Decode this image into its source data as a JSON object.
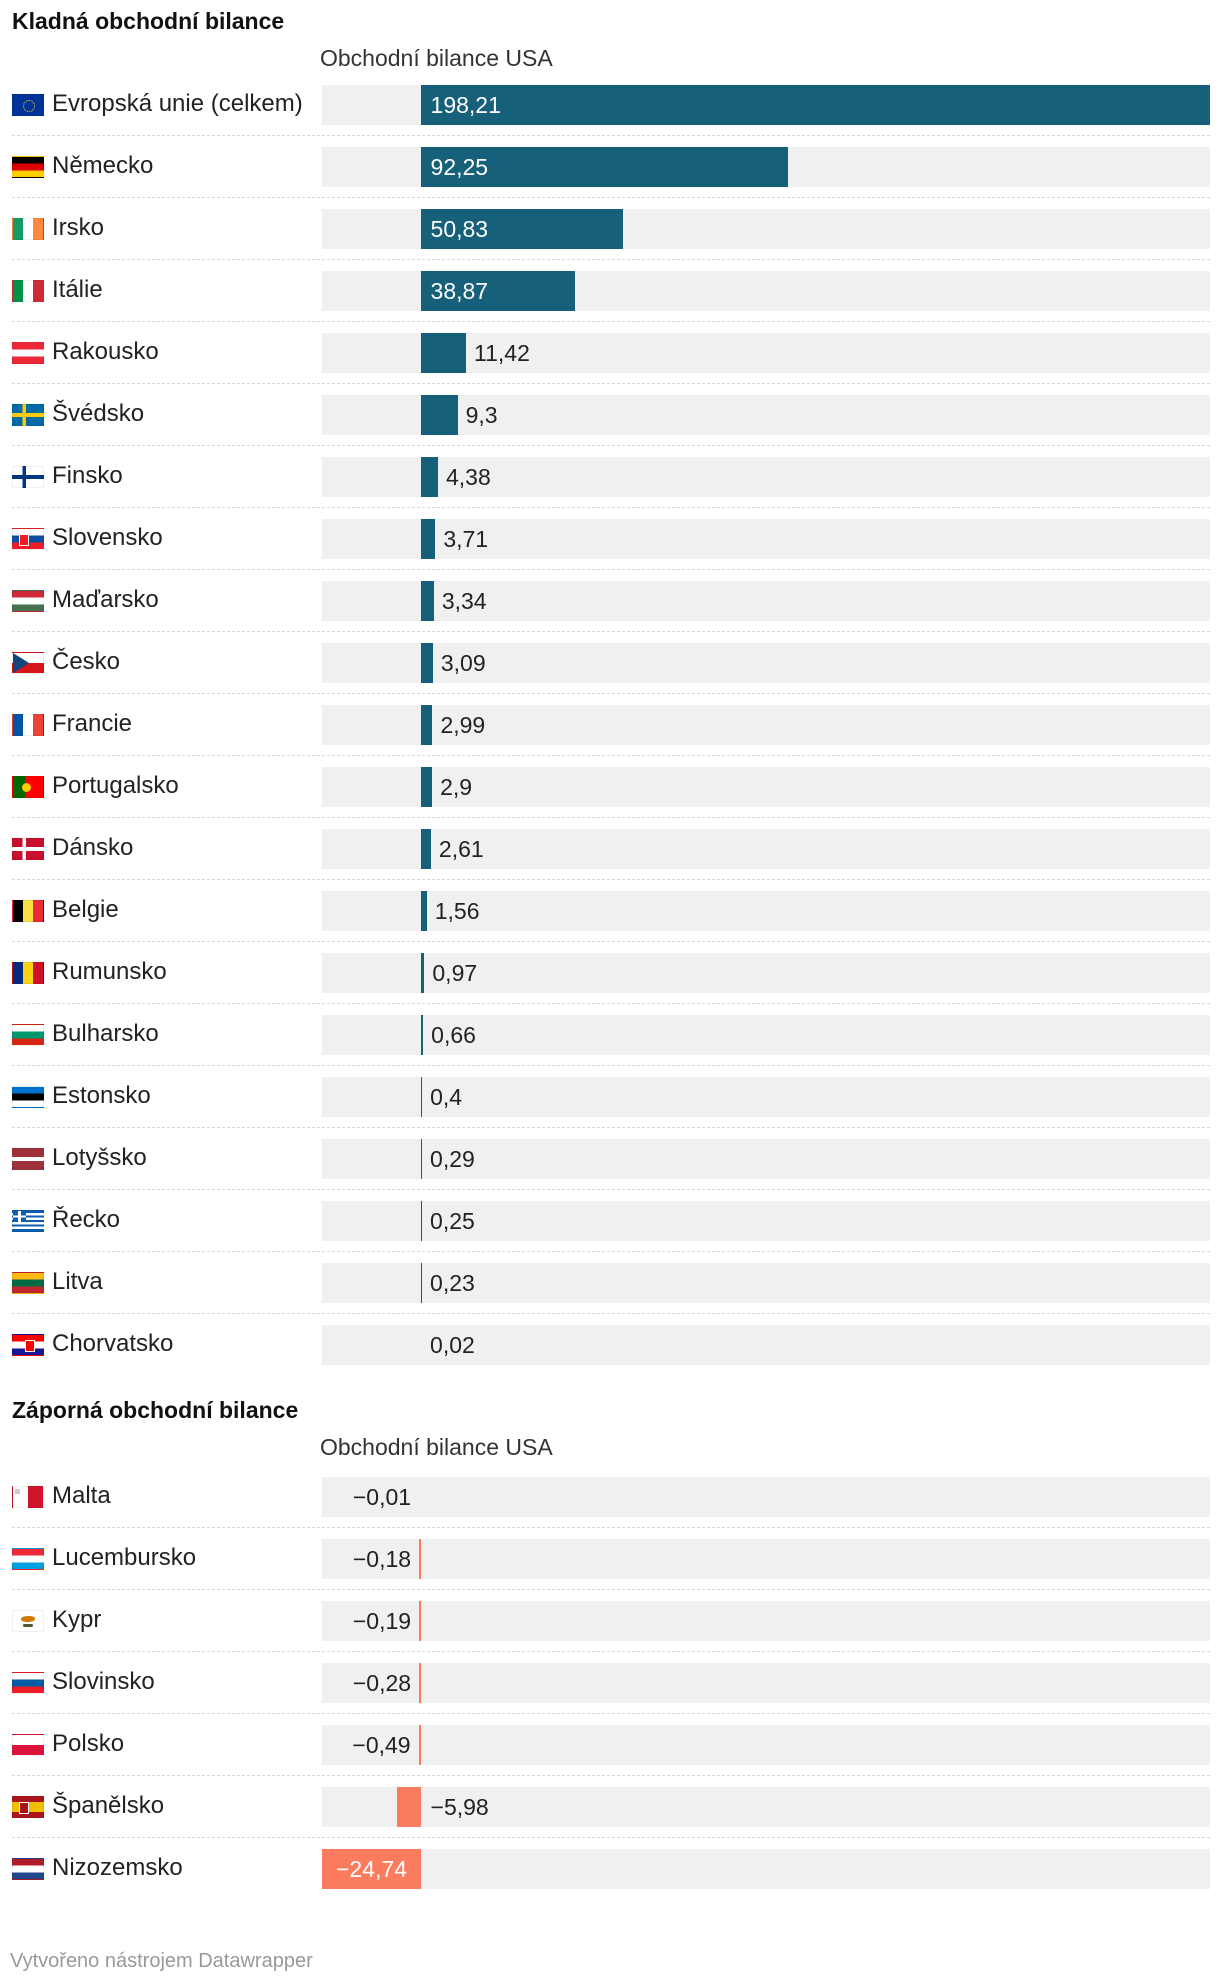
{
  "chart_data": [
    {
      "type": "bar",
      "title": "Kladná obchodní bilance",
      "column_header": "Obchodní bilance USA",
      "categories": [
        "Evropská unie (celkem)",
        "Německo",
        "Irsko",
        "Itálie",
        "Rakousko",
        "Švédsko",
        "Finsko",
        "Slovensko",
        "Maďarsko",
        "Česko",
        "Francie",
        "Portugalsko",
        "Dánsko",
        "Belgie",
        "Rumunsko",
        "Bulharsko",
        "Estonsko",
        "Lotyšsko",
        "Řecko",
        "Litva",
        "Chorvatsko"
      ],
      "values": [
        198.21,
        92.25,
        50.83,
        38.87,
        11.42,
        9.3,
        4.38,
        3.71,
        3.34,
        3.09,
        2.99,
        2.9,
        2.61,
        1.56,
        0.97,
        0.66,
        0.4,
        0.29,
        0.25,
        0.23,
        0.02
      ],
      "value_labels": [
        "198,21",
        "92,25",
        "50,83",
        "38,87",
        "11,42",
        "9,3",
        "4,38",
        "3,71",
        "3,34",
        "3,09",
        "2,99",
        "2,9",
        "2,61",
        "1,56",
        "0,97",
        "0,66",
        "0,4",
        "0,29",
        "0,25",
        "0,23",
        "0,02"
      ],
      "flags": [
        "eu",
        "de",
        "ie",
        "it",
        "at",
        "se",
        "fi",
        "sk",
        "hu",
        "cz",
        "fr",
        "pt",
        "dk",
        "be",
        "ro",
        "bg",
        "ee",
        "lv",
        "gr",
        "lt",
        "hr"
      ],
      "xlim": [
        -24.74,
        198.21
      ],
      "bar_color": "#17607a"
    },
    {
      "type": "bar",
      "title": "Záporná obchodní bilance",
      "column_header": "Obchodní bilance USA",
      "categories": [
        "Malta",
        "Lucembursko",
        "Kypr",
        "Slovinsko",
        "Polsko",
        "Španělsko",
        "Nizozemsko"
      ],
      "values": [
        -0.01,
        -0.18,
        -0.19,
        -0.28,
        -0.49,
        -5.98,
        -24.74
      ],
      "value_labels": [
        "−0,01",
        "−0,18",
        "−0,19",
        "−0,28",
        "−0,49",
        "−5,98",
        "−24,74"
      ],
      "flags": [
        "mt",
        "lu",
        "cy",
        "si",
        "pl",
        "es",
        "nl"
      ],
      "xlim": [
        -24.74,
        198.21
      ],
      "bar_color": "#fa7b5e"
    }
  ],
  "colors": {
    "positive": "#17607a",
    "negative": "#fa7b5e",
    "background_bar": "#f0f0f0"
  },
  "footer": "Vytvořeno nástrojem Datawrapper"
}
